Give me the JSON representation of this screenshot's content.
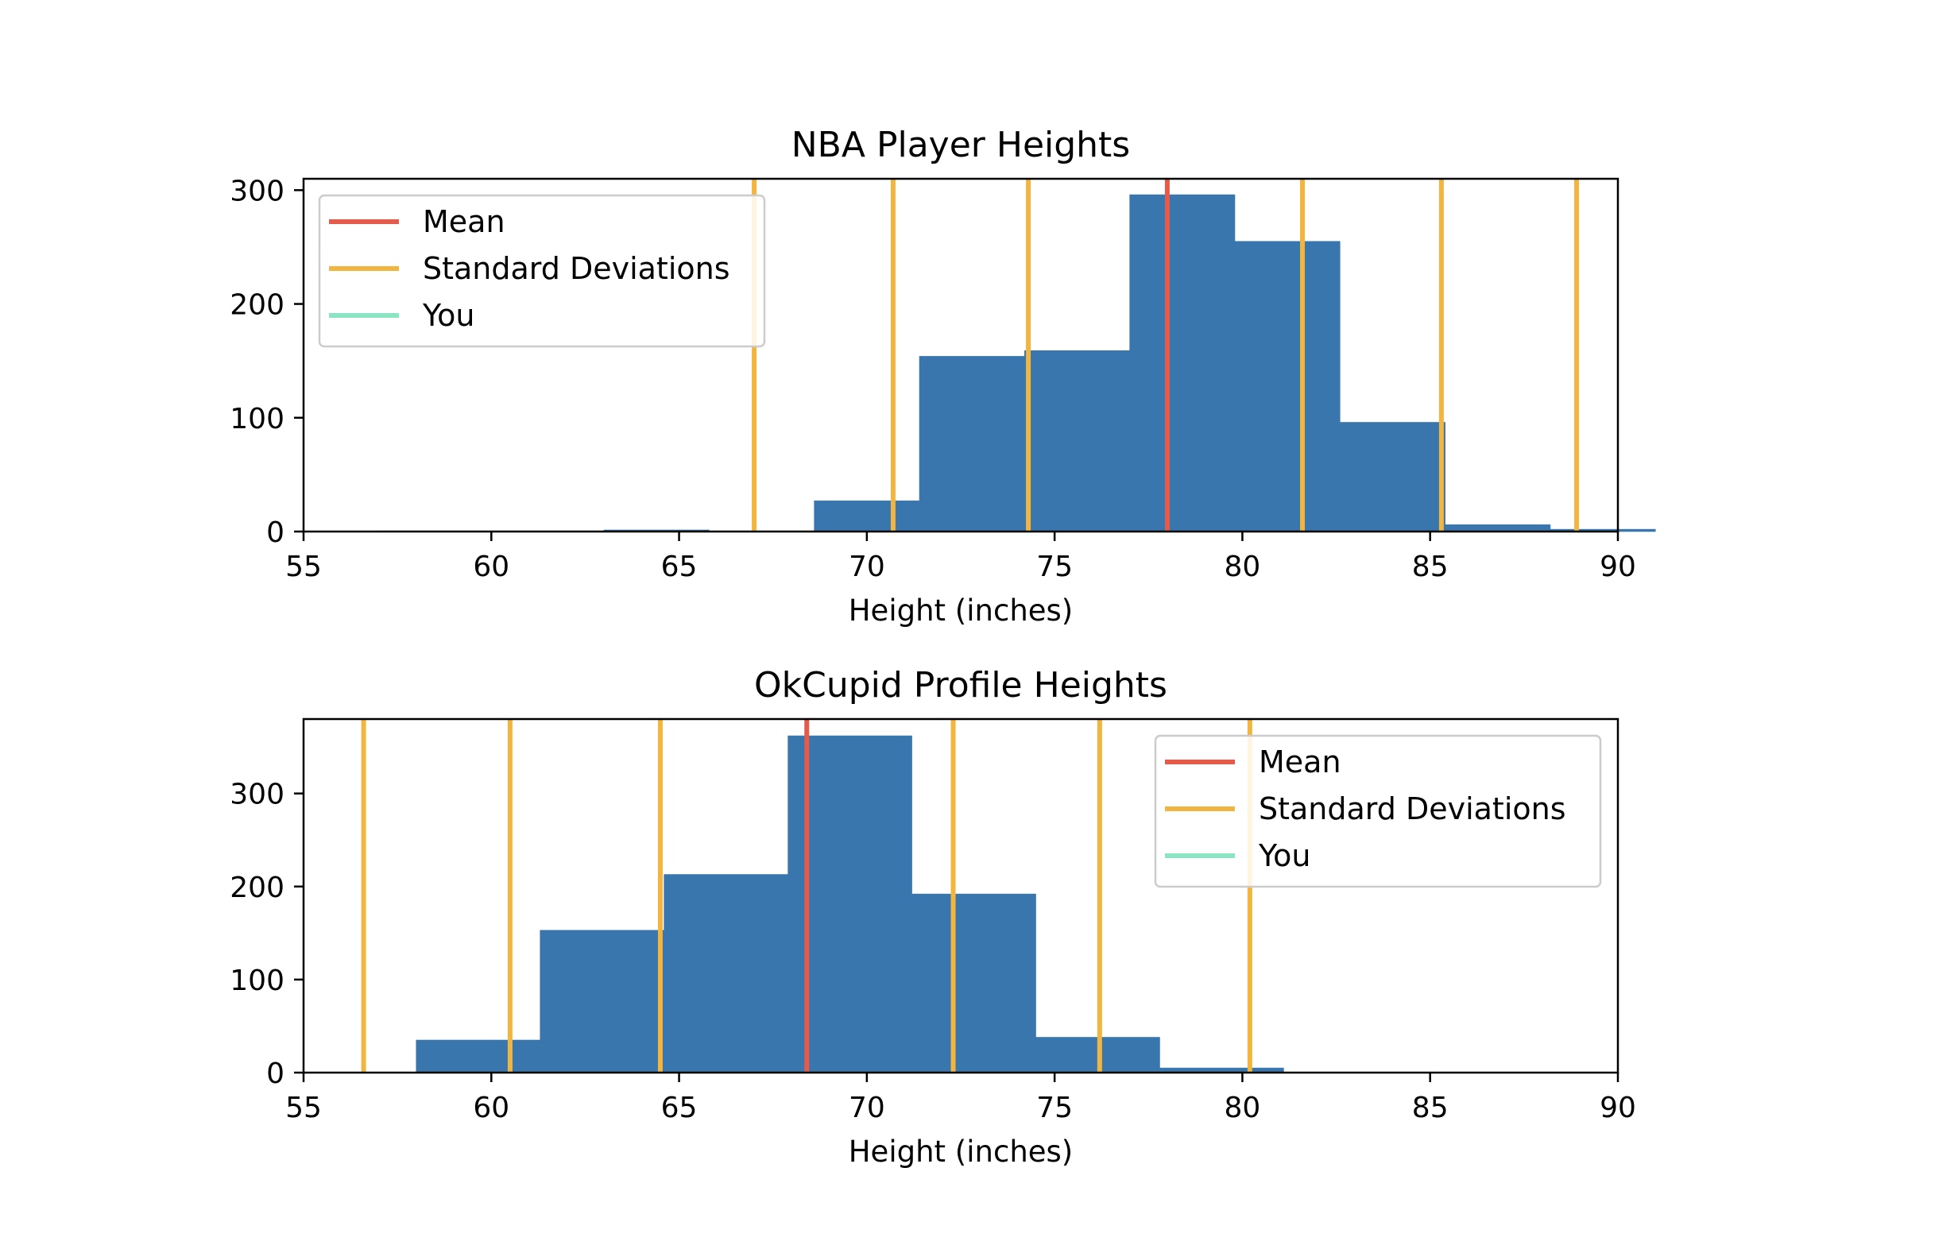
{
  "colors": {
    "bar": "#3a76ae",
    "mean": "#e45b4b",
    "std": "#f2b53f",
    "you": "#8be4c2",
    "axis": "#000000"
  },
  "chart_data": [
    {
      "type": "bar",
      "title": "NBA Player Heights",
      "xlabel": "Height (inches)",
      "ylabel": "",
      "xlim": [
        55,
        90
      ],
      "ylim": [
        0,
        310
      ],
      "xticks": [
        55,
        60,
        65,
        70,
        75,
        80,
        85,
        90
      ],
      "yticks": [
        0,
        100,
        200,
        300
      ],
      "bins": [
        {
          "x0": 57.0,
          "x1": 60.0,
          "value": 0
        },
        {
          "x0": 60.0,
          "x1": 63.0,
          "value": 0
        },
        {
          "x0": 63.0,
          "x1": 65.8,
          "value": 1
        },
        {
          "x0": 65.8,
          "x1": 68.6,
          "value": 0
        },
        {
          "x0": 68.6,
          "x1": 71.4,
          "value": 27
        },
        {
          "x0": 71.4,
          "x1": 74.2,
          "value": 154
        },
        {
          "x0": 74.2,
          "x1": 77.0,
          "value": 159
        },
        {
          "x0": 77.0,
          "x1": 79.8,
          "value": 296
        },
        {
          "x0": 79.8,
          "x1": 82.6,
          "value": 255
        },
        {
          "x0": 82.6,
          "x1": 85.4,
          "value": 96
        },
        {
          "x0": 85.4,
          "x1": 88.2,
          "value": 6
        },
        {
          "x0": 88.2,
          "x1": 91.0,
          "value": 2
        }
      ],
      "mean": 78.0,
      "std_lines": [
        67.0,
        70.7,
        74.3,
        81.6,
        85.3,
        88.9
      ],
      "legend": {
        "position": "upper left",
        "entries": [
          {
            "label": "Mean",
            "color_key": "mean"
          },
          {
            "label": "Standard Deviations",
            "color_key": "std"
          },
          {
            "label": "You",
            "color_key": "you"
          }
        ]
      }
    },
    {
      "type": "bar",
      "title": "OkCupid Profile Heights",
      "xlabel": "Height (inches)",
      "ylabel": "",
      "xlim": [
        55,
        90
      ],
      "ylim": [
        0,
        380
      ],
      "xticks": [
        55,
        60,
        65,
        70,
        75,
        80,
        85,
        90
      ],
      "yticks": [
        0,
        100,
        200,
        300
      ],
      "bins": [
        {
          "x0": 58.0,
          "x1": 61.3,
          "value": 35
        },
        {
          "x0": 61.3,
          "x1": 64.6,
          "value": 153
        },
        {
          "x0": 64.6,
          "x1": 67.9,
          "value": 213
        },
        {
          "x0": 67.9,
          "x1": 71.2,
          "value": 362
        },
        {
          "x0": 71.2,
          "x1": 74.5,
          "value": 192
        },
        {
          "x0": 74.5,
          "x1": 77.8,
          "value": 38
        },
        {
          "x0": 77.8,
          "x1": 81.1,
          "value": 5
        }
      ],
      "mean": 68.4,
      "std_lines": [
        56.6,
        60.5,
        64.5,
        72.3,
        76.2,
        80.2
      ],
      "legend": {
        "position": "upper right",
        "entries": [
          {
            "label": "Mean",
            "color_key": "mean"
          },
          {
            "label": "Standard Deviations",
            "color_key": "std"
          },
          {
            "label": "You",
            "color_key": "you"
          }
        ]
      }
    }
  ]
}
